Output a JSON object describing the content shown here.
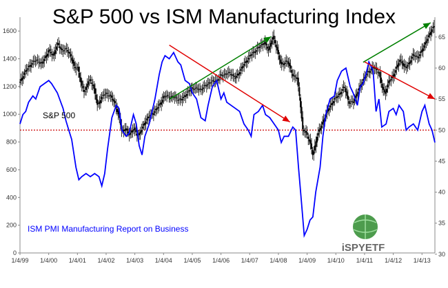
{
  "chart_data": {
    "type": "line",
    "title": "S&P 500 vs ISM Manufacturing Index",
    "x_tick_labels": [
      "1/4/99",
      "1/4/00",
      "1/4/01",
      "1/4/02",
      "1/4/03",
      "1/4/04",
      "1/4/05",
      "1/4/06",
      "1/4/07",
      "1/4/08",
      "1/4/09",
      "1/4/10",
      "1/4/11",
      "1/4/12",
      "1/4/13"
    ],
    "x_range": [
      1999.0,
      2013.45
    ],
    "left_axis": {
      "ticks": [
        0,
        200,
        400,
        600,
        800,
        1000,
        1200,
        1400,
        1600
      ],
      "ylim": [
        0,
        1700
      ]
    },
    "right_axis": {
      "ticks": [
        30,
        35,
        40,
        45,
        50,
        55,
        60,
        65
      ],
      "ylim": [
        30.2,
        68.2
      ]
    },
    "grid": false,
    "reference_line": {
      "axis": "right",
      "value": 50,
      "color": "#cc0000",
      "style": "dotted"
    },
    "series": [
      {
        "name": "S&P 500",
        "axis": "left",
        "style": "candlestick",
        "color": "#000000",
        "points": [
          [
            1999.0,
            1230
          ],
          [
            1999.15,
            1300
          ],
          [
            1999.3,
            1340
          ],
          [
            1999.45,
            1380
          ],
          [
            1999.6,
            1390
          ],
          [
            1999.75,
            1360
          ],
          [
            1999.9,
            1420
          ],
          [
            2000.0,
            1460
          ],
          [
            2000.15,
            1420
          ],
          [
            2000.3,
            1510
          ],
          [
            2000.45,
            1460
          ],
          [
            2000.6,
            1470
          ],
          [
            2000.75,
            1430
          ],
          [
            2000.9,
            1330
          ],
          [
            2001.0,
            1340
          ],
          [
            2001.15,
            1200
          ],
          [
            2001.25,
            1160
          ],
          [
            2001.4,
            1250
          ],
          [
            2001.55,
            1210
          ],
          [
            2001.7,
            1060
          ],
          [
            2001.85,
            1130
          ],
          [
            2002.0,
            1150
          ],
          [
            2002.15,
            1130
          ],
          [
            2002.3,
            1080
          ],
          [
            2002.45,
            980
          ],
          [
            2002.55,
            870
          ],
          [
            2002.65,
            900
          ],
          [
            2002.8,
            850
          ],
          [
            2002.95,
            900
          ],
          [
            2003.1,
            840
          ],
          [
            2003.25,
            900
          ],
          [
            2003.45,
            980
          ],
          [
            2003.6,
            1000
          ],
          [
            2003.75,
            1040
          ],
          [
            2003.9,
            1080
          ],
          [
            2004.0,
            1130
          ],
          [
            2004.2,
            1130
          ],
          [
            2004.4,
            1120
          ],
          [
            2004.6,
            1100
          ],
          [
            2004.8,
            1150
          ],
          [
            2005.0,
            1190
          ],
          [
            2005.3,
            1180
          ],
          [
            2005.6,
            1230
          ],
          [
            2005.9,
            1250
          ],
          [
            2006.0,
            1280
          ],
          [
            2006.3,
            1300
          ],
          [
            2006.5,
            1260
          ],
          [
            2006.8,
            1360
          ],
          [
            2007.0,
            1420
          ],
          [
            2007.3,
            1480
          ],
          [
            2007.5,
            1520
          ],
          [
            2007.65,
            1460
          ],
          [
            2007.8,
            1560
          ],
          [
            2007.95,
            1470
          ],
          [
            2008.1,
            1350
          ],
          [
            2008.3,
            1390
          ],
          [
            2008.5,
            1280
          ],
          [
            2008.65,
            1260
          ],
          [
            2008.75,
            1100
          ],
          [
            2008.85,
            880
          ],
          [
            2008.95,
            870
          ],
          [
            2009.1,
            800
          ],
          [
            2009.2,
            700
          ],
          [
            2009.35,
            850
          ],
          [
            2009.5,
            920
          ],
          [
            2009.65,
            1000
          ],
          [
            2009.8,
            1060
          ],
          [
            2009.95,
            1110
          ],
          [
            2010.1,
            1140
          ],
          [
            2010.3,
            1200
          ],
          [
            2010.45,
            1080
          ],
          [
            2010.6,
            1090
          ],
          [
            2010.8,
            1180
          ],
          [
            2010.95,
            1250
          ],
          [
            2011.1,
            1300
          ],
          [
            2011.3,
            1340
          ],
          [
            2011.5,
            1300
          ],
          [
            2011.6,
            1200
          ],
          [
            2011.7,
            1150
          ],
          [
            2011.85,
            1240
          ],
          [
            2011.95,
            1260
          ],
          [
            2012.1,
            1330
          ],
          [
            2012.25,
            1400
          ],
          [
            2012.4,
            1330
          ],
          [
            2012.55,
            1370
          ],
          [
            2012.7,
            1430
          ],
          [
            2012.85,
            1410
          ],
          [
            2012.95,
            1440
          ],
          [
            2013.1,
            1510
          ],
          [
            2013.25,
            1570
          ],
          [
            2013.35,
            1620
          ],
          [
            2013.45,
            1640
          ]
        ]
      },
      {
        "name": "ISM PMI Manufacturing Report on Business",
        "axis": "right",
        "style": "line",
        "color": "#0000ff",
        "points": [
          [
            1999.0,
            51
          ],
          [
            1999.1,
            52.5
          ],
          [
            1999.2,
            53
          ],
          [
            1999.3,
            54.5
          ],
          [
            1999.45,
            55.5
          ],
          [
            1999.55,
            55
          ],
          [
            1999.7,
            57
          ],
          [
            1999.85,
            57.5
          ],
          [
            2000.0,
            58
          ],
          [
            2000.1,
            57.5
          ],
          [
            2000.3,
            56
          ],
          [
            2000.5,
            53.5
          ],
          [
            2000.6,
            51.5
          ],
          [
            2000.7,
            50
          ],
          [
            2000.8,
            48.5
          ],
          [
            2000.95,
            44
          ],
          [
            2001.05,
            42
          ],
          [
            2001.15,
            42.5
          ],
          [
            2001.3,
            43
          ],
          [
            2001.45,
            42.5
          ],
          [
            2001.6,
            43
          ],
          [
            2001.75,
            42.5
          ],
          [
            2001.85,
            41
          ],
          [
            2001.95,
            43
          ],
          [
            2002.05,
            47
          ],
          [
            2002.2,
            52
          ],
          [
            2002.35,
            54
          ],
          [
            2002.45,
            53.5
          ],
          [
            2002.55,
            50
          ],
          [
            2002.7,
            49
          ],
          [
            2002.8,
            49.5
          ],
          [
            2002.95,
            52.5
          ],
          [
            2003.05,
            51
          ],
          [
            2003.15,
            47.5
          ],
          [
            2003.25,
            46
          ],
          [
            2003.35,
            49
          ],
          [
            2003.5,
            51
          ],
          [
            2003.7,
            55
          ],
          [
            2003.85,
            59
          ],
          [
            2003.95,
            61
          ],
          [
            2004.05,
            62
          ],
          [
            2004.2,
            61.5
          ],
          [
            2004.35,
            62.5
          ],
          [
            2004.5,
            61
          ],
          [
            2004.6,
            60.5
          ],
          [
            2004.75,
            58
          ],
          [
            2004.9,
            57.5
          ],
          [
            2005.0,
            56
          ],
          [
            2005.15,
            55
          ],
          [
            2005.3,
            52
          ],
          [
            2005.45,
            51.5
          ],
          [
            2005.55,
            54
          ],
          [
            2005.7,
            57
          ],
          [
            2005.85,
            58
          ],
          [
            2006.0,
            55
          ],
          [
            2006.1,
            56
          ],
          [
            2006.2,
            54.5
          ],
          [
            2006.35,
            54
          ],
          [
            2006.5,
            53.5
          ],
          [
            2006.65,
            53
          ],
          [
            2006.8,
            51
          ],
          [
            2006.95,
            50
          ],
          [
            2007.05,
            49
          ],
          [
            2007.15,
            52.5
          ],
          [
            2007.3,
            53
          ],
          [
            2007.45,
            54
          ],
          [
            2007.55,
            52.5
          ],
          [
            2007.7,
            52
          ],
          [
            2007.85,
            51
          ],
          [
            2008.0,
            50
          ],
          [
            2008.1,
            48
          ],
          [
            2008.2,
            49
          ],
          [
            2008.35,
            49
          ],
          [
            2008.5,
            50.5
          ],
          [
            2008.6,
            50
          ],
          [
            2008.7,
            44
          ],
          [
            2008.8,
            38.5
          ],
          [
            2008.9,
            33
          ],
          [
            2009.0,
            34
          ],
          [
            2009.1,
            35.5
          ],
          [
            2009.2,
            36
          ],
          [
            2009.3,
            40
          ],
          [
            2009.45,
            44
          ],
          [
            2009.55,
            49
          ],
          [
            2009.65,
            52.5
          ],
          [
            2009.8,
            55
          ],
          [
            2009.95,
            55.5
          ],
          [
            2010.05,
            58
          ],
          [
            2010.2,
            59.5
          ],
          [
            2010.35,
            60
          ],
          [
            2010.5,
            57
          ],
          [
            2010.6,
            56
          ],
          [
            2010.75,
            54
          ],
          [
            2010.85,
            57
          ],
          [
            2010.95,
            57.5
          ],
          [
            2011.05,
            59
          ],
          [
            2011.15,
            61
          ],
          [
            2011.3,
            59.5
          ],
          [
            2011.4,
            53
          ],
          [
            2011.5,
            55
          ],
          [
            2011.6,
            50.5
          ],
          [
            2011.75,
            51
          ],
          [
            2011.85,
            53
          ],
          [
            2012.0,
            53.5
          ],
          [
            2012.1,
            52.5
          ],
          [
            2012.2,
            54
          ],
          [
            2012.35,
            53
          ],
          [
            2012.45,
            50
          ],
          [
            2012.55,
            50.5
          ],
          [
            2012.7,
            51
          ],
          [
            2012.85,
            50
          ],
          [
            2013.0,
            53
          ],
          [
            2013.1,
            54
          ],
          [
            2013.15,
            53
          ],
          [
            2013.25,
            51
          ],
          [
            2013.35,
            50
          ],
          [
            2013.45,
            48
          ]
        ]
      }
    ],
    "annotations": [
      {
        "kind": "arrow",
        "axis": "left",
        "color": "#008000",
        "from": [
          2004.2,
          1108
        ],
        "to": [
          2007.75,
          1560
        ]
      },
      {
        "kind": "arrow",
        "axis": "left",
        "color": "#008000",
        "from": [
          2010.95,
          1375
        ],
        "to": [
          2013.3,
          1660
        ]
      },
      {
        "kind": "arrow",
        "axis": "right",
        "color": "#e00000",
        "from": [
          2004.2,
          63.7
        ],
        "to": [
          2008.4,
          51.3
        ]
      },
      {
        "kind": "arrow",
        "axis": "right",
        "color": "#e00000",
        "from": [
          2011.0,
          61.0
        ],
        "to": [
          2013.45,
          55.0
        ]
      }
    ],
    "logo_text": "iSPYETF"
  }
}
